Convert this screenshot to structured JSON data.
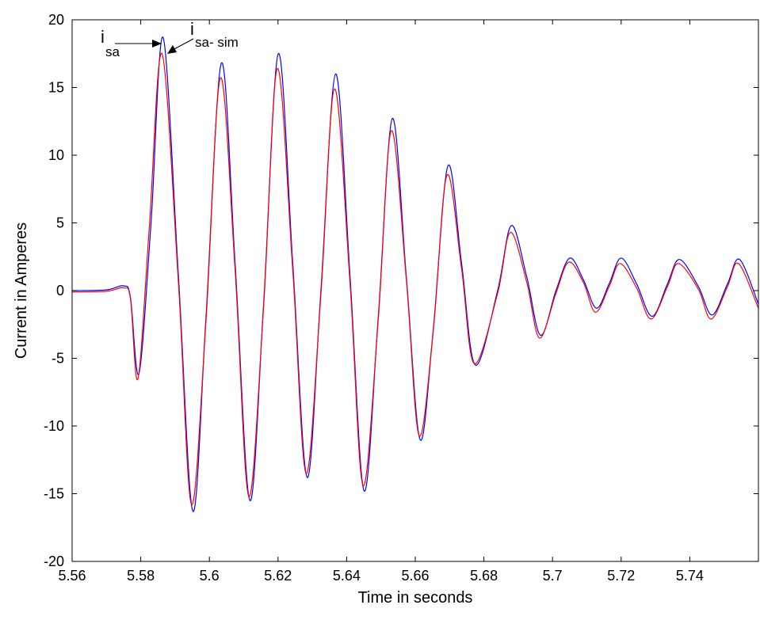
{
  "chart_data": {
    "type": "line",
    "xlabel": "Time in seconds",
    "ylabel": "Current in Amperes",
    "xlim": [
      5.56,
      5.76
    ],
    "ylim": [
      -20,
      20
    ],
    "x_ticks": [
      5.56,
      5.58,
      5.6,
      5.62,
      5.64,
      5.66,
      5.68,
      5.7,
      5.72,
      5.74
    ],
    "x_tick_labels": [
      "5.56",
      "5.58",
      "5.6",
      "5.62",
      "5.64",
      "5.66",
      "5.68",
      "5.7",
      "5.72",
      "5.74"
    ],
    "y_ticks": [
      20,
      15,
      10,
      5,
      0,
      -5,
      -10,
      -15,
      -20
    ],
    "y_tick_labels": [
      "20",
      "15",
      "10",
      "5",
      "0",
      "-5",
      "-10",
      "-15",
      "-20"
    ],
    "grid": false,
    "series": [
      {
        "color": "#0000ff",
        "x": [
          5.56,
          5.57,
          5.575,
          5.577,
          5.5795,
          5.583,
          5.5865,
          5.591,
          5.5952,
          5.599,
          5.6035,
          5.6075,
          5.6118,
          5.6158,
          5.6201,
          5.6243,
          5.6285,
          5.6325,
          5.6368,
          5.641,
          5.6451,
          5.6492,
          5.6533,
          5.6574,
          5.6614,
          5.6652,
          5.6695,
          5.6735,
          5.6775,
          5.684,
          5.688,
          5.6925,
          5.6965,
          5.701,
          5.705,
          5.709,
          5.7128,
          5.7165,
          5.72,
          5.7245,
          5.729,
          5.7335,
          5.737,
          5.7425,
          5.7465,
          5.751,
          5.7545,
          5.76
        ],
        "values": [
          0,
          0.05,
          0.35,
          -0.5,
          -6.1,
          5,
          18.7,
          1,
          -16.3,
          -2,
          16.8,
          2,
          -15.5,
          -1,
          17.5,
          2,
          -13.8,
          0,
          16.0,
          1,
          -14.8,
          -2,
          12.7,
          1,
          -11.0,
          -3,
          9.2,
          2,
          -5.5,
          0,
          4.8,
          1,
          -3.3,
          0,
          2.4,
          0.8,
          -1.3,
          0.5,
          2.4,
          0.5,
          -1.9,
          0.5,
          2.3,
          0.3,
          -1.8,
          0.5,
          2.3,
          -1.0
        ]
      },
      {
        "color": "#ff0000",
        "x": [
          5.56,
          5.57,
          5.575,
          5.577,
          5.5792,
          5.5825,
          5.5862,
          5.591,
          5.5948,
          5.599,
          5.6032,
          5.6075,
          5.6115,
          5.6158,
          5.6198,
          5.6243,
          5.6282,
          5.6325,
          5.6365,
          5.641,
          5.6448,
          5.6492,
          5.653,
          5.6574,
          5.6611,
          5.6652,
          5.6692,
          5.6735,
          5.6772,
          5.684,
          5.6877,
          5.6925,
          5.6962,
          5.701,
          5.7047,
          5.709,
          5.7125,
          5.7165,
          5.7197,
          5.7245,
          5.7287,
          5.7335,
          5.7367,
          5.7425,
          5.7462,
          5.751,
          5.7542,
          5.76
        ],
        "values": [
          -0.1,
          -0.05,
          0.2,
          -0.6,
          -6.5,
          4.7,
          17.5,
          0.5,
          -15.8,
          -2.3,
          15.7,
          1.5,
          -15.2,
          -1.2,
          16.4,
          1.5,
          -13.5,
          -0.3,
          14.9,
          0.5,
          -14.4,
          -2.2,
          11.8,
          0.8,
          -10.7,
          -3.1,
          8.5,
          1.6,
          -5.4,
          -0.2,
          4.3,
          0.6,
          -3.5,
          -0.2,
          2.1,
          0.6,
          -1.6,
          0.3,
          2.0,
          0.2,
          -2.1,
          0.3,
          2.0,
          0.1,
          -2.1,
          0.3,
          2.0,
          -1.3
        ]
      }
    ],
    "annotations": [
      {
        "main": "i",
        "sub": "sa"
      },
      {
        "main": "i",
        "sub": "sa- sim"
      }
    ]
  }
}
